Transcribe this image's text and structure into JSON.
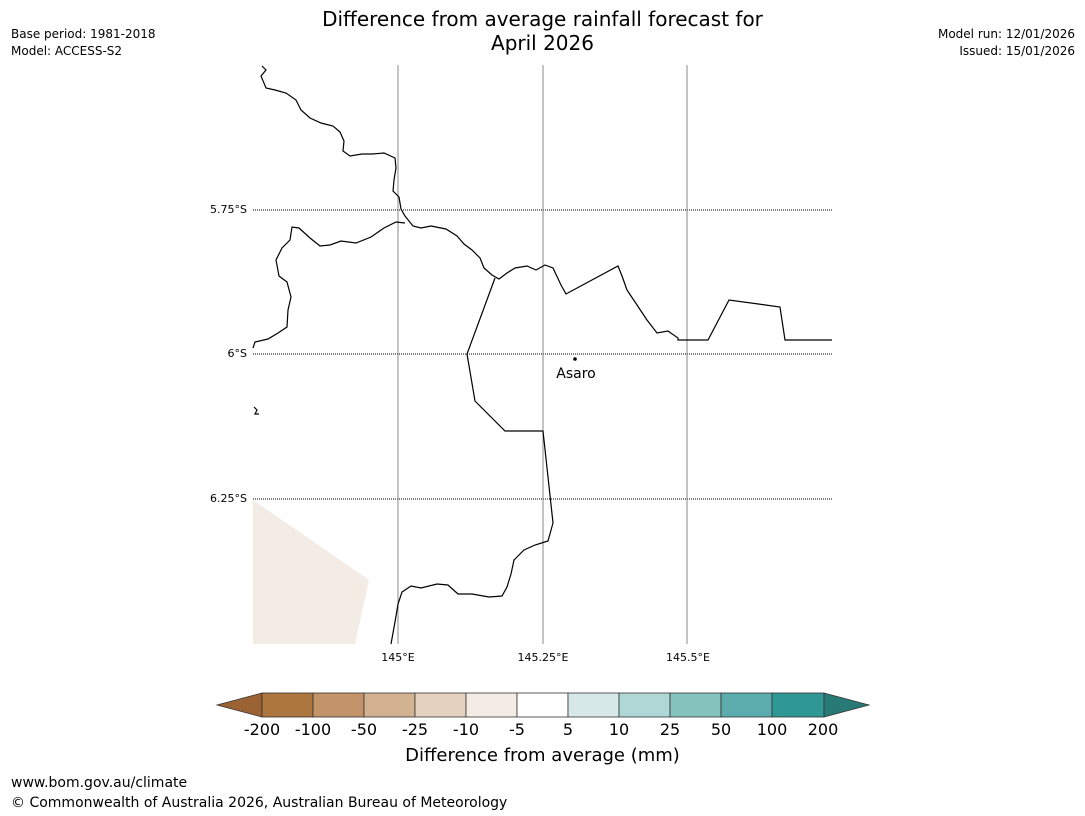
{
  "title_line1": "Difference from average rainfall forecast for",
  "title_line2": "April 2026",
  "base_period": "Base period: 1981-2018",
  "model": "Model: ACCESS-S2",
  "model_run": "Model run: 12/01/2026",
  "issued": "Issued: 15/01/2026",
  "map": {
    "lat_labels": [
      "5.75°S",
      "6°S",
      "6.25°S"
    ],
    "lon_labels": [
      "145°E",
      "145.25°E",
      "145.5°E"
    ],
    "place": "Asaro"
  },
  "colorbar": {
    "title": "Difference from average (mm)",
    "ticks": [
      "-200",
      "-100",
      "-50",
      "-25",
      "-10",
      "-5",
      "5",
      "10",
      "25",
      "50",
      "100",
      "200"
    ],
    "colors": [
      "#9b6233",
      "#ae763f",
      "#c39469",
      "#d3b292",
      "#e6d2c0",
      "#f2ece5",
      "#ffffff",
      "#d6e8e8",
      "#aed7d6",
      "#85c2be",
      "#5bacac",
      "#309894",
      "#287a76"
    ]
  },
  "footer_url": "www.bom.gov.au/climate",
  "copyright": "© Commonwealth of Australia 2026, Australian Bureau of Meteorology"
}
